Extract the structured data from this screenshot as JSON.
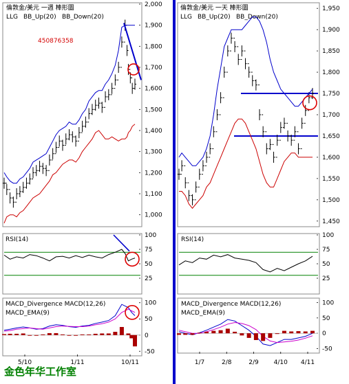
{
  "watermark_id": "450876358",
  "studio_label": "金色年华工作室",
  "colors": {
    "price": "#000000",
    "bb_up": "#0000cc",
    "bb_down": "#cc0000",
    "trend": "#0000cc",
    "rsi": "#000000",
    "rsi_band": "#008000",
    "macd": "#0000cc",
    "signal": "#cc00cc",
    "hist": "#aa0000",
    "circle": "#dd0000",
    "studio": "#008000"
  },
  "chart_data": [
    {
      "type": "line",
      "panel": "weekly",
      "title": "倫敦金/美元 一週 棒形圖",
      "legend": [
        "LLG",
        "BB_Up(20)",
        "BB_Down(20)"
      ],
      "subtype": "bar",
      "x_ticks": [
        "5/10",
        "1/11",
        "10/11"
      ],
      "y_ticks": [
        "1,000",
        "1,100",
        "1,200",
        "1,300",
        "1,400",
        "1,500",
        "1,600",
        "1,700",
        "1,800",
        "1,900",
        "2,000"
      ],
      "ylim": [
        950,
        2000
      ],
      "x": [
        1,
        5,
        10,
        15,
        20,
        25,
        30,
        35,
        40,
        45,
        50,
        55,
        60,
        65,
        70,
        75,
        80,
        85,
        90,
        95,
        100,
        105,
        110,
        115,
        120,
        125,
        130,
        135,
        140,
        145,
        150,
        155,
        160,
        165,
        170,
        175,
        180,
        185,
        188,
        190,
        193,
        196,
        200
      ],
      "series": [
        {
          "name": "LLG",
          "values": [
            1150,
            1120,
            1080,
            1060,
            1100,
            1110,
            1130,
            1150,
            1170,
            1200,
            1210,
            1230,
            1220,
            1210,
            1260,
            1290,
            1320,
            1350,
            1330,
            1360,
            1380,
            1370,
            1350,
            1390,
            1420,
            1440,
            1480,
            1500,
            1520,
            1530,
            1510,
            1560,
            1570,
            1600,
            1640,
            1700,
            1820,
            1900,
            1780,
            1690,
            1650,
            1600,
            1620
          ]
        },
        {
          "name": "BB_Up(20)",
          "values": [
            1200,
            1180,
            1160,
            1150,
            1150,
            1170,
            1180,
            1200,
            1220,
            1250,
            1260,
            1270,
            1280,
            1290,
            1320,
            1350,
            1380,
            1400,
            1410,
            1420,
            1440,
            1430,
            1430,
            1450,
            1480,
            1500,
            1540,
            1560,
            1580,
            1590,
            1590,
            1620,
            1640,
            1670,
            1710,
            1780,
            1890,
            1900,
            1900,
            1900,
            1900,
            1900,
            1900
          ]
        },
        {
          "name": "BB_Down(20)",
          "values": [
            960,
            990,
            1000,
            1000,
            990,
            1010,
            1020,
            1040,
            1060,
            1080,
            1090,
            1100,
            1120,
            1140,
            1160,
            1190,
            1200,
            1220,
            1240,
            1250,
            1260,
            1260,
            1250,
            1270,
            1300,
            1320,
            1340,
            1360,
            1390,
            1400,
            1380,
            1360,
            1360,
            1370,
            1360,
            1350,
            1360,
            1360,
            1370,
            1390,
            1400,
            1420,
            1430
          ]
        }
      ]
    },
    {
      "type": "line",
      "panel": "daily",
      "title": "倫敦金/美元 一天 棒形圖",
      "legend": [
        "LLG",
        "BB_Up(20)",
        "BB_Down(20)"
      ],
      "subtype": "bar",
      "x_ticks": [
        "1/7",
        "2/8",
        "2/9",
        "4/10",
        "4/11"
      ],
      "y_ticks": [
        "1,450",
        "1,500",
        "1,550",
        "1,600",
        "1,650",
        "1,700",
        "1,750",
        "1,800",
        "1,850",
        "1,900",
        "1,950"
      ],
      "ylim": [
        1440,
        1960
      ],
      "x": [
        1,
        5,
        10,
        15,
        20,
        25,
        30,
        35,
        40,
        45,
        50,
        55,
        60,
        65,
        70,
        75,
        80,
        85,
        90,
        95,
        100,
        105,
        110,
        115,
        120,
        125,
        130,
        135,
        140,
        145,
        150,
        155,
        160,
        165,
        170,
        175,
        180,
        185,
        190
      ],
      "series": [
        {
          "name": "LLG",
          "values": [
            1560,
            1580,
            1540,
            1510,
            1500,
            1530,
            1560,
            1580,
            1600,
            1620,
            1660,
            1700,
            1740,
            1800,
            1850,
            1880,
            1860,
            1830,
            1850,
            1820,
            1800,
            1780,
            1770,
            1700,
            1660,
            1620,
            1630,
            1600,
            1640,
            1670,
            1680,
            1650,
            1640,
            1660,
            1620,
            1680,
            1710,
            1740,
            1750
          ]
        },
        {
          "name": "BB_Up(20)",
          "values": [
            1600,
            1610,
            1600,
            1590,
            1580,
            1580,
            1590,
            1600,
            1620,
            1650,
            1700,
            1760,
            1810,
            1860,
            1880,
            1900,
            1900,
            1900,
            1900,
            1910,
            1920,
            1930,
            1930,
            1920,
            1900,
            1870,
            1830,
            1800,
            1780,
            1760,
            1750,
            1740,
            1730,
            1720,
            1720,
            1730,
            1740,
            1750,
            1760
          ]
        },
        {
          "name": "BB_Down(20)",
          "values": [
            1520,
            1520,
            1510,
            1490,
            1480,
            1490,
            1500,
            1510,
            1530,
            1540,
            1560,
            1580,
            1600,
            1620,
            1640,
            1660,
            1680,
            1690,
            1690,
            1680,
            1660,
            1640,
            1620,
            1590,
            1560,
            1540,
            1530,
            1530,
            1550,
            1570,
            1590,
            1600,
            1610,
            1610,
            1600,
            1600,
            1600,
            1600,
            1600
          ]
        }
      ],
      "levels": [
        1750,
        1650
      ]
    },
    {
      "type": "line",
      "panel": "weekly_rsi",
      "title": "RSI(14)",
      "y_ticks": [
        "25",
        "50",
        "75",
        "100"
      ],
      "ylim": [
        0,
        100
      ],
      "bands": [
        70,
        30
      ],
      "x": [
        1,
        10,
        20,
        30,
        40,
        50,
        60,
        70,
        80,
        90,
        100,
        110,
        120,
        130,
        140,
        150,
        160,
        170,
        180,
        185,
        190,
        195,
        200
      ],
      "series": [
        {
          "name": "RSI(14)",
          "values": [
            65,
            58,
            62,
            60,
            66,
            64,
            60,
            55,
            62,
            63,
            60,
            64,
            61,
            65,
            62,
            60,
            66,
            70,
            75,
            68,
            55,
            58,
            60
          ]
        }
      ]
    },
    {
      "type": "line",
      "panel": "daily_rsi",
      "title": "RSI(14)",
      "y_ticks": [
        "25",
        "50",
        "75",
        "100"
      ],
      "ylim": [
        0,
        100
      ],
      "bands": [
        70,
        30
      ],
      "x": [
        1,
        10,
        20,
        30,
        40,
        50,
        60,
        70,
        80,
        90,
        100,
        110,
        120,
        130,
        140,
        150,
        160,
        170,
        180,
        190
      ],
      "series": [
        {
          "name": "RSI(14)",
          "values": [
            48,
            55,
            52,
            60,
            58,
            65,
            62,
            66,
            60,
            58,
            56,
            52,
            40,
            36,
            42,
            38,
            44,
            50,
            55,
            63
          ]
        }
      ]
    },
    {
      "type": "line",
      "panel": "weekly_macd",
      "title": "MACD_Divergence  MACD(12,26)",
      "subtitle": "MACD_EMA(9)",
      "x_ticks": [
        "5/10",
        "1/11",
        "10/11"
      ],
      "y_ticks": [
        "-50",
        "0",
        "50",
        "100"
      ],
      "ylim": [
        -60,
        110
      ],
      "x": [
        1,
        10,
        20,
        30,
        40,
        50,
        60,
        70,
        80,
        90,
        100,
        110,
        120,
        130,
        140,
        150,
        160,
        170,
        180,
        190,
        195,
        200
      ],
      "series": [
        {
          "name": "MACD(12,26)",
          "values": [
            15,
            18,
            22,
            25,
            22,
            18,
            20,
            28,
            32,
            30,
            26,
            24,
            28,
            30,
            36,
            40,
            45,
            60,
            95,
            85,
            70,
            60
          ]
        },
        {
          "name": "MACD_EMA(9)",
          "values": [
            12,
            14,
            18,
            20,
            22,
            20,
            18,
            22,
            26,
            28,
            27,
            26,
            26,
            28,
            32,
            35,
            40,
            50,
            70,
            80,
            75,
            70
          ]
        },
        {
          "name": "MACD_Divergence",
          "values": [
            3,
            4,
            4,
            5,
            0,
            -2,
            2,
            6,
            6,
            2,
            -1,
            -2,
            2,
            2,
            4,
            5,
            5,
            10,
            25,
            5,
            -10,
            -35
          ]
        }
      ]
    },
    {
      "type": "line",
      "panel": "daily_macd",
      "title": "MACD_Divergence  MACD(12,26)",
      "subtitle": "MACD_EMA(9)",
      "x_ticks": [
        "1/7",
        "2/8",
        "2/9",
        "4/10",
        "4/11"
      ],
      "y_ticks": [
        "-50",
        "0",
        "50",
        "100"
      ],
      "ylim": [
        -60,
        110
      ],
      "x": [
        1,
        10,
        20,
        30,
        40,
        50,
        60,
        70,
        80,
        90,
        100,
        110,
        120,
        130,
        140,
        150,
        160,
        170,
        180,
        190
      ],
      "series": [
        {
          "name": "MACD(12,26)",
          "values": [
            5,
            0,
            -5,
            2,
            10,
            20,
            30,
            45,
            40,
            25,
            10,
            -10,
            -35,
            -40,
            -30,
            -20,
            -20,
            -15,
            -10,
            0
          ]
        },
        {
          "name": "MACD_EMA(9)",
          "values": [
            10,
            5,
            0,
            0,
            5,
            12,
            20,
            30,
            35,
            32,
            25,
            12,
            -10,
            -25,
            -30,
            -28,
            -26,
            -22,
            -16,
            -8
          ]
        },
        {
          "name": "MACD_Divergence",
          "values": [
            -5,
            -5,
            -5,
            2,
            5,
            8,
            10,
            15,
            5,
            -7,
            -15,
            -22,
            -25,
            -15,
            0,
            8,
            6,
            7,
            6,
            8
          ]
        }
      ]
    }
  ]
}
